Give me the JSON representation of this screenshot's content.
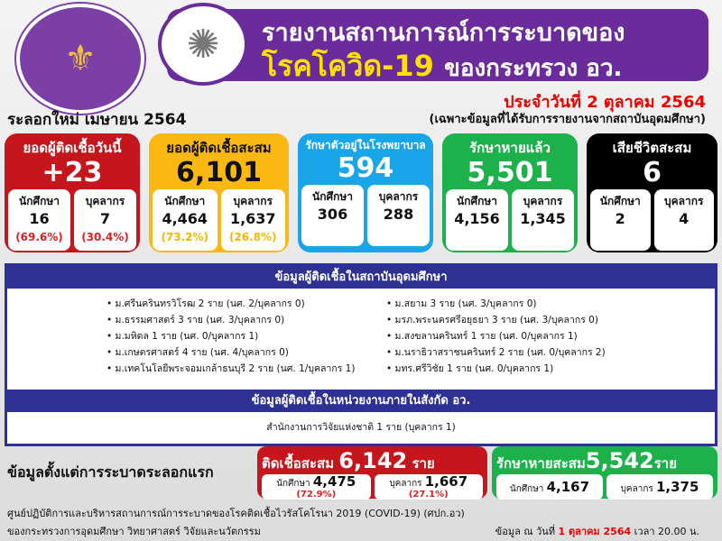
{
  "header": {
    "title_line1": "รายงานสถานการณ์การระบาดของ",
    "title_disease": "โรคโควิด-19",
    "title_ministry": "ของกระทรวง อว.",
    "date": "ประจำวันที่ 2 ตุลาคม 2564",
    "note": "(เฉพาะข้อมูลที่ได้รับการรายงานจากสถาบันอุดมศึกษา)",
    "wave": "ระลอกใหม่ เมษายน 2564"
  },
  "cards": [
    {
      "title": "ยอดผู้ติดเชื้อวันนี้",
      "value": "+23",
      "a_label": "นักศึกษา",
      "a_value": "16",
      "a_pct": "(69.6%)",
      "b_label": "บุคลากร",
      "b_value": "7",
      "b_pct": "(30.4%)",
      "color": "#c4161c"
    },
    {
      "title": "ยอดผู้ติดเชื้อสะสม",
      "value": "6,101",
      "a_label": "นักศึกษา",
      "a_value": "4,464",
      "a_pct": "(73.2%)",
      "b_label": "บุคลากร",
      "b_value": "1,637",
      "b_pct": "(26.8%)",
      "color": "#fbb812"
    },
    {
      "title": "รักษาตัวอยู่ในโรงพยาบาล",
      "value": "594",
      "a_label": "นักศึกษา",
      "a_value": "306",
      "b_label": "บุคลากร",
      "b_value": "288",
      "color": "#19a6e8"
    },
    {
      "title": "รักษาหายแล้ว",
      "value": "5,501",
      "a_label": "นักศึกษา",
      "a_value": "4,156",
      "b_label": "บุคลากร",
      "b_value": "1,345",
      "color": "#1db14b"
    },
    {
      "title": "เสียชีวิตสะสม",
      "value": "6",
      "a_label": "นักศึกษา",
      "a_value": "2",
      "b_label": "บุคลากร",
      "b_value": "4",
      "color": "#000000"
    }
  ],
  "institutions": {
    "title": "ข้อมูลผู้ติดเชื้อในสถาบันอุดมศึกษา",
    "left": [
      "ม.ศรีนครินทรวิโรฒ 2 ราย (นศ. 2/บุคลากร 0)",
      "ม.ธรรมศาสตร์ 3 ราย (นศ. 3/บุคลากร 0)",
      "ม.มหิดล 1 ราย (นศ. 0/บุคลากร 1)",
      "ม.เกษตรศาสตร์ 4 ราย (นศ. 4/บุคลากร 0)",
      "ม.เทคโนโลยีพระจอมเกล้าธนบุรี 2 ราย (นศ. 1/บุคลากร 1)"
    ],
    "right": [
      "ม.สยาม 3 ราย (นศ. 3/บุคลากร 0)",
      "มรภ.พระนครศรีอยุธยา 3 ราย (นศ. 3/บุคลากร 0)",
      "ม.สงขลานครินทร์ 1 ราย (นศ. 0/บุคลากร 1)",
      "ม.นราธิวาสราชนครินทร์ 2 ราย (นศ. 0/บุคลากร 2)",
      "มทร.ศรีวิชัย 1 ราย (นศ. 0/บุคลากร 1)"
    ]
  },
  "agencies": {
    "title": "ข้อมูลผู้ติดเชื้อในหน่วยงานภายในสังกัด อว.",
    "items": [
      "สำนักงานการวิจัยแห่งชาติ 1 ราย (บุคลากร 1)"
    ]
  },
  "since_first": {
    "label": "ข้อมูลตั้งแต่การระบาดระลอกแรก",
    "infected": {
      "title": "ติดเชื้อสะสม",
      "value": "6,142",
      "unit": "ราย",
      "a_label": "นักศึกษา",
      "a_value": "4,475",
      "a_pct": "(72.9%)",
      "b_label": "บุคลากร",
      "b_value": "1,667",
      "b_pct": "(27.1%)"
    },
    "recovered": {
      "title": "รักษาหายสะสม",
      "value": "5,542",
      "unit": "ราย",
      "a_label": "นักศึกษา",
      "a_value": "4,167",
      "b_label": "บุคลากร",
      "b_value": "1,375"
    }
  },
  "footer": {
    "line1": "ศูนย์ปฏิบัติการและบริหารสถานการณ์การระบาดของโรคติดเชื้อไวรัสโคโรนา 2019 (COVID-19) (ศปก.อว)",
    "line2": "ของกระทรวงการอุดมศึกษา วิทยาศาสตร์ วิจัยและนวัตกรรม",
    "asof_prefix": "ข้อมูล ณ วันที่",
    "asof_date": "1 ตุลาคม 2564",
    "asof_time": "เวลา 20.00 น."
  }
}
